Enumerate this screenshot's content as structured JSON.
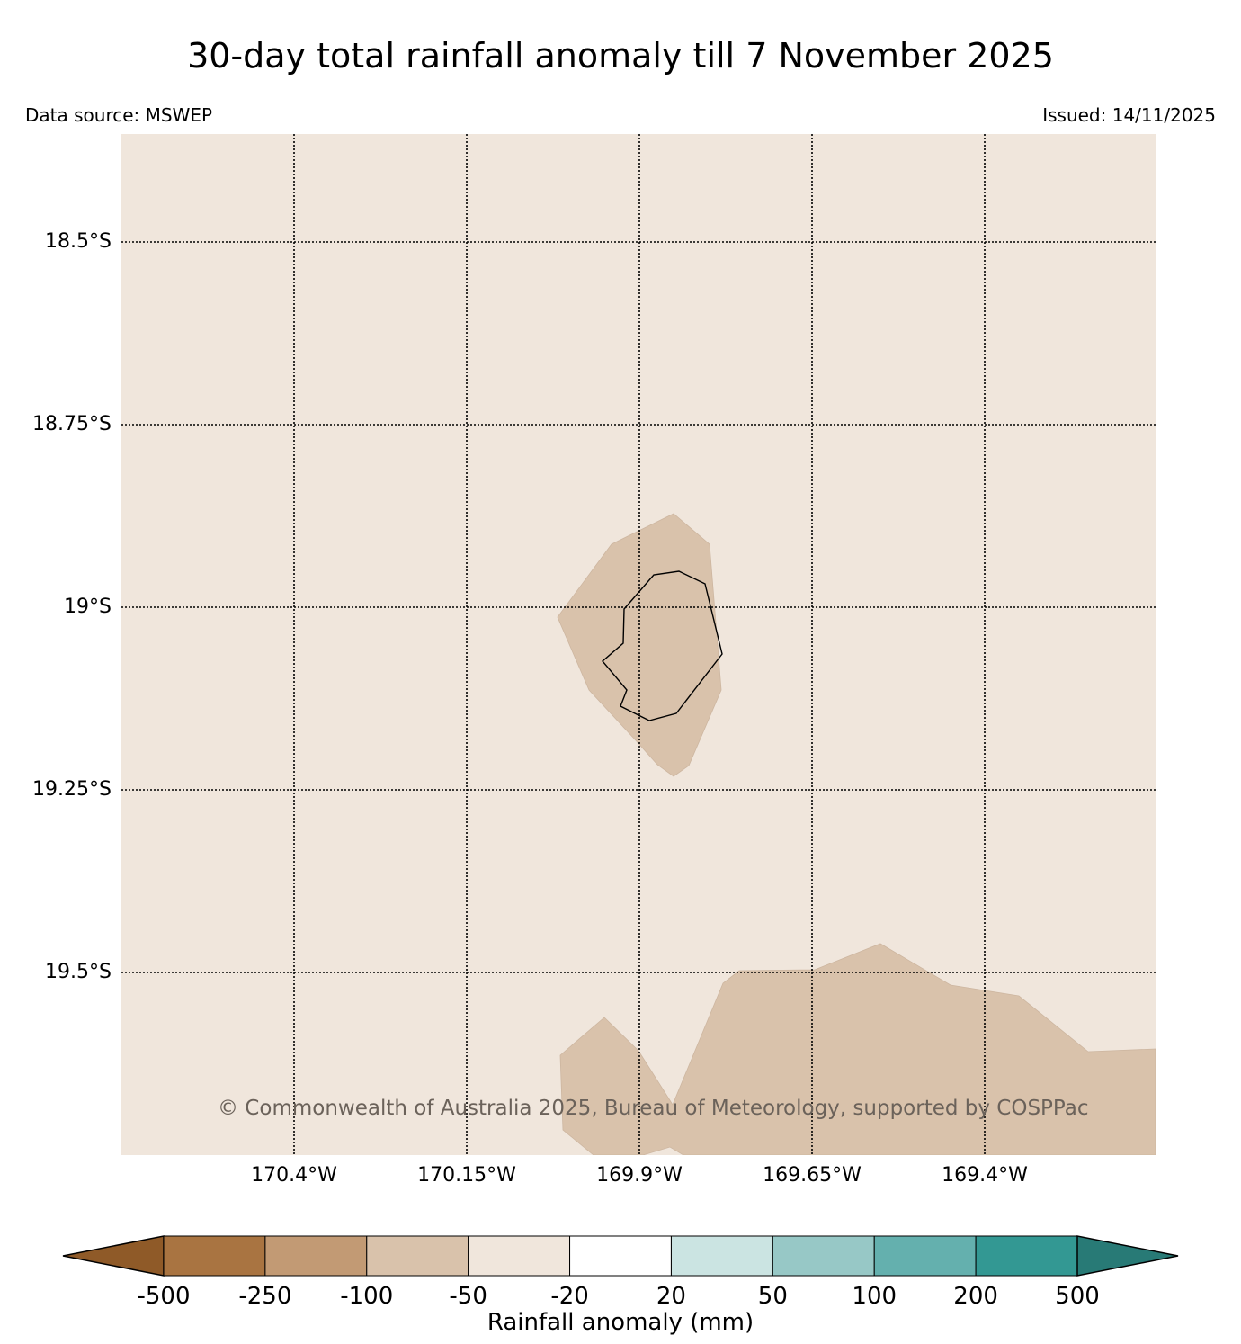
{
  "title": "30-day total rainfall anomaly till 7 November 2025",
  "data_source": "Data source: MSWEP",
  "issued": "Issued: 14/11/2025",
  "copyright": "© Commonwealth of Australia 2025, Bureau of Meteorology, supported by COSPPac",
  "map": {
    "background_class_color": "#f0e6dc",
    "anomaly_patch_color": "#d9c2ab",
    "lat_ticks": [
      "18.5°S",
      "18.75°S",
      "19°S",
      "19.25°S",
      "19.5°S"
    ],
    "lon_ticks": [
      "170.4°W",
      "170.15°W",
      "169.9°W",
      "169.65°W",
      "169.4°W"
    ]
  },
  "colorbar": {
    "label": "Rainfall anomaly (mm)",
    "ticks": [
      "-500",
      "-250",
      "-100",
      "-50",
      "-20",
      "20",
      "50",
      "100",
      "200",
      "500"
    ],
    "colors": [
      "#8f5a28",
      "#a97441",
      "#c29a74",
      "#d9c2ab",
      "#f0e6dc",
      "#ffffff",
      "#cbe4e2",
      "#97c8c6",
      "#64b0ae",
      "#339893",
      "#287a76"
    ]
  }
}
